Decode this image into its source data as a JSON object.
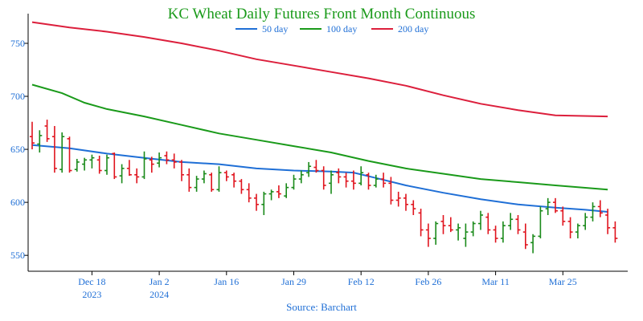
{
  "chart_data": {
    "type": "ohlc",
    "title": "KC Wheat Daily Futures Front Month Continuous",
    "source": "Source: Barchart",
    "title_color": "#1a9a1a",
    "ylim": [
      535,
      778
    ],
    "y_ticks": [
      {
        "value": 550,
        "label": "550"
      },
      {
        "value": 600,
        "label": "600"
      },
      {
        "value": 650,
        "label": "650"
      },
      {
        "value": 700,
        "label": "700"
      },
      {
        "value": 750,
        "label": "750"
      }
    ],
    "xlim": [
      0,
      79
    ],
    "x_ticks": [
      {
        "pos": 8,
        "label": "Dec 18",
        "sublabel": "2023"
      },
      {
        "pos": 17,
        "label": "Jan 2",
        "sublabel": "2024"
      },
      {
        "pos": 26,
        "label": "Jan 16",
        "sublabel": ""
      },
      {
        "pos": 35,
        "label": "Jan 29",
        "sublabel": ""
      },
      {
        "pos": 44,
        "label": "Feb 12",
        "sublabel": ""
      },
      {
        "pos": 53,
        "label": "Feb 26",
        "sublabel": ""
      },
      {
        "pos": 62,
        "label": "Mar 11",
        "sublabel": ""
      },
      {
        "pos": 71,
        "label": "Mar 25",
        "sublabel": ""
      }
    ],
    "legend": [
      {
        "name": "50 day",
        "color": "#1f6fd6"
      },
      {
        "name": "100 day",
        "color": "#1a9a1a"
      },
      {
        "name": "200 day",
        "color": "#dc1f3c"
      }
    ],
    "moving_averages": [
      {
        "name": "50 day",
        "color": "#1f6fd6",
        "points": [
          [
            0,
            654
          ],
          [
            5,
            651
          ],
          [
            10,
            646
          ],
          [
            15,
            642
          ],
          [
            20,
            638
          ],
          [
            25,
            636
          ],
          [
            30,
            632
          ],
          [
            35,
            630
          ],
          [
            40,
            629
          ],
          [
            43,
            628
          ],
          [
            46,
            623
          ],
          [
            50,
            616
          ],
          [
            55,
            609
          ],
          [
            60,
            603
          ],
          [
            65,
            598
          ],
          [
            70,
            595
          ],
          [
            74,
            593
          ],
          [
            77,
            591
          ]
        ]
      },
      {
        "name": "100 day",
        "color": "#1a9a1a",
        "points": [
          [
            0,
            711
          ],
          [
            4,
            703
          ],
          [
            7,
            694
          ],
          [
            10,
            688
          ],
          [
            15,
            681
          ],
          [
            20,
            673
          ],
          [
            25,
            665
          ],
          [
            30,
            659
          ],
          [
            35,
            653
          ],
          [
            40,
            647
          ],
          [
            45,
            639
          ],
          [
            50,
            632
          ],
          [
            55,
            627
          ],
          [
            60,
            622
          ],
          [
            65,
            619
          ],
          [
            70,
            616
          ],
          [
            77,
            612
          ]
        ]
      },
      {
        "name": "200 day",
        "color": "#dc1f3c",
        "points": [
          [
            0,
            770
          ],
          [
            5,
            765
          ],
          [
            10,
            761
          ],
          [
            15,
            756
          ],
          [
            20,
            750
          ],
          [
            25,
            743
          ],
          [
            30,
            735
          ],
          [
            35,
            729
          ],
          [
            40,
            723
          ],
          [
            45,
            717
          ],
          [
            50,
            710
          ],
          [
            55,
            701
          ],
          [
            60,
            693
          ],
          [
            65,
            687
          ],
          [
            70,
            682
          ],
          [
            77,
            681
          ]
        ]
      }
    ],
    "candles": [
      {
        "x": 0,
        "o": 662,
        "h": 676,
        "l": 650,
        "c": 656,
        "up": false
      },
      {
        "x": 1,
        "o": 655,
        "h": 668,
        "l": 647,
        "c": 663,
        "up": true
      },
      {
        "x": 2,
        "o": 672,
        "h": 678,
        "l": 657,
        "c": 660,
        "up": false
      },
      {
        "x": 3,
        "o": 662,
        "h": 672,
        "l": 628,
        "c": 632,
        "up": false
      },
      {
        "x": 4,
        "o": 631,
        "h": 666,
        "l": 628,
        "c": 662,
        "up": true
      },
      {
        "x": 5,
        "o": 660,
        "h": 662,
        "l": 628,
        "c": 630,
        "up": false
      },
      {
        "x": 6,
        "o": 631,
        "h": 641,
        "l": 629,
        "c": 638,
        "up": true
      },
      {
        "x": 7,
        "o": 636,
        "h": 642,
        "l": 630,
        "c": 640,
        "up": true
      },
      {
        "x": 8,
        "o": 640,
        "h": 645,
        "l": 632,
        "c": 642,
        "up": true
      },
      {
        "x": 9,
        "o": 640,
        "h": 644,
        "l": 627,
        "c": 630,
        "up": false
      },
      {
        "x": 10,
        "o": 630,
        "h": 645,
        "l": 626,
        "c": 642,
        "up": true
      },
      {
        "x": 11,
        "o": 646,
        "h": 647,
        "l": 622,
        "c": 624,
        "up": false
      },
      {
        "x": 12,
        "o": 625,
        "h": 636,
        "l": 618,
        "c": 632,
        "up": true
      },
      {
        "x": 13,
        "o": 632,
        "h": 640,
        "l": 625,
        "c": 626,
        "up": false
      },
      {
        "x": 14,
        "o": 626,
        "h": 632,
        "l": 618,
        "c": 624,
        "up": false
      },
      {
        "x": 15,
        "o": 624,
        "h": 648,
        "l": 622,
        "c": 641,
        "up": true
      },
      {
        "x": 16,
        "o": 640,
        "h": 643,
        "l": 628,
        "c": 636,
        "up": false
      },
      {
        "x": 17,
        "o": 637,
        "h": 647,
        "l": 633,
        "c": 642,
        "up": true
      },
      {
        "x": 18,
        "o": 644,
        "h": 648,
        "l": 636,
        "c": 640,
        "up": false
      },
      {
        "x": 19,
        "o": 640,
        "h": 646,
        "l": 632,
        "c": 638,
        "up": false
      },
      {
        "x": 20,
        "o": 638,
        "h": 640,
        "l": 620,
        "c": 626,
        "up": false
      },
      {
        "x": 21,
        "o": 626,
        "h": 632,
        "l": 610,
        "c": 614,
        "up": false
      },
      {
        "x": 22,
        "o": 614,
        "h": 625,
        "l": 610,
        "c": 622,
        "up": true
      },
      {
        "x": 23,
        "o": 622,
        "h": 630,
        "l": 618,
        "c": 627,
        "up": true
      },
      {
        "x": 24,
        "o": 626,
        "h": 628,
        "l": 610,
        "c": 612,
        "up": false
      },
      {
        "x": 25,
        "o": 612,
        "h": 634,
        "l": 610,
        "c": 628,
        "up": true
      },
      {
        "x": 26,
        "o": 628,
        "h": 630,
        "l": 620,
        "c": 624,
        "up": false
      },
      {
        "x": 27,
        "o": 626,
        "h": 628,
        "l": 614,
        "c": 620,
        "up": false
      },
      {
        "x": 28,
        "o": 620,
        "h": 622,
        "l": 608,
        "c": 612,
        "up": false
      },
      {
        "x": 29,
        "o": 612,
        "h": 618,
        "l": 600,
        "c": 604,
        "up": false
      },
      {
        "x": 30,
        "o": 604,
        "h": 608,
        "l": 592,
        "c": 598,
        "up": false
      },
      {
        "x": 31,
        "o": 598,
        "h": 610,
        "l": 588,
        "c": 608,
        "up": true
      },
      {
        "x": 32,
        "o": 608,
        "h": 612,
        "l": 602,
        "c": 610,
        "up": true
      },
      {
        "x": 33,
        "o": 610,
        "h": 616,
        "l": 604,
        "c": 608,
        "up": false
      },
      {
        "x": 34,
        "o": 606,
        "h": 618,
        "l": 604,
        "c": 614,
        "up": true
      },
      {
        "x": 35,
        "o": 614,
        "h": 626,
        "l": 612,
        "c": 622,
        "up": true
      },
      {
        "x": 36,
        "o": 622,
        "h": 630,
        "l": 618,
        "c": 626,
        "up": true
      },
      {
        "x": 37,
        "o": 628,
        "h": 638,
        "l": 624,
        "c": 634,
        "up": true
      },
      {
        "x": 38,
        "o": 633,
        "h": 640,
        "l": 628,
        "c": 630,
        "up": false
      },
      {
        "x": 39,
        "o": 630,
        "h": 634,
        "l": 612,
        "c": 616,
        "up": false
      },
      {
        "x": 40,
        "o": 618,
        "h": 630,
        "l": 608,
        "c": 626,
        "up": true
      },
      {
        "x": 41,
        "o": 628,
        "h": 632,
        "l": 618,
        "c": 624,
        "up": false
      },
      {
        "x": 42,
        "o": 624,
        "h": 628,
        "l": 614,
        "c": 620,
        "up": false
      },
      {
        "x": 43,
        "o": 620,
        "h": 630,
        "l": 612,
        "c": 618,
        "up": false
      },
      {
        "x": 44,
        "o": 618,
        "h": 634,
        "l": 616,
        "c": 628,
        "up": true
      },
      {
        "x": 45,
        "o": 626,
        "h": 628,
        "l": 612,
        "c": 616,
        "up": false
      },
      {
        "x": 46,
        "o": 616,
        "h": 626,
        "l": 614,
        "c": 622,
        "up": true
      },
      {
        "x": 47,
        "o": 622,
        "h": 628,
        "l": 614,
        "c": 618,
        "up": false
      },
      {
        "x": 48,
        "o": 618,
        "h": 624,
        "l": 598,
        "c": 602,
        "up": false
      },
      {
        "x": 49,
        "o": 602,
        "h": 610,
        "l": 596,
        "c": 604,
        "up": false
      },
      {
        "x": 50,
        "o": 604,
        "h": 608,
        "l": 592,
        "c": 598,
        "up": false
      },
      {
        "x": 51,
        "o": 598,
        "h": 602,
        "l": 588,
        "c": 594,
        "up": false
      },
      {
        "x": 52,
        "o": 590,
        "h": 594,
        "l": 568,
        "c": 574,
        "up": false
      },
      {
        "x": 53,
        "o": 574,
        "h": 580,
        "l": 558,
        "c": 566,
        "up": false
      },
      {
        "x": 54,
        "o": 566,
        "h": 582,
        "l": 560,
        "c": 580,
        "up": true
      },
      {
        "x": 55,
        "o": 582,
        "h": 588,
        "l": 570,
        "c": 578,
        "up": false
      },
      {
        "x": 56,
        "o": 578,
        "h": 586,
        "l": 572,
        "c": 574,
        "up": false
      },
      {
        "x": 57,
        "o": 574,
        "h": 580,
        "l": 564,
        "c": 576,
        "up": true
      },
      {
        "x": 58,
        "o": 566,
        "h": 580,
        "l": 558,
        "c": 572,
        "up": true
      },
      {
        "x": 59,
        "o": 572,
        "h": 582,
        "l": 568,
        "c": 580,
        "up": true
      },
      {
        "x": 60,
        "o": 580,
        "h": 592,
        "l": 574,
        "c": 588,
        "up": true
      },
      {
        "x": 61,
        "o": 586,
        "h": 590,
        "l": 570,
        "c": 574,
        "up": false
      },
      {
        "x": 62,
        "o": 574,
        "h": 578,
        "l": 562,
        "c": 566,
        "up": false
      },
      {
        "x": 63,
        "o": 566,
        "h": 582,
        "l": 562,
        "c": 578,
        "up": true
      },
      {
        "x": 64,
        "o": 578,
        "h": 590,
        "l": 574,
        "c": 584,
        "up": true
      },
      {
        "x": 65,
        "o": 584,
        "h": 588,
        "l": 570,
        "c": 574,
        "up": false
      },
      {
        "x": 66,
        "o": 572,
        "h": 580,
        "l": 556,
        "c": 560,
        "up": false
      },
      {
        "x": 67,
        "o": 562,
        "h": 570,
        "l": 552,
        "c": 568,
        "up": true
      },
      {
        "x": 68,
        "o": 568,
        "h": 596,
        "l": 566,
        "c": 592,
        "up": true
      },
      {
        "x": 69,
        "o": 594,
        "h": 604,
        "l": 588,
        "c": 600,
        "up": true
      },
      {
        "x": 70,
        "o": 600,
        "h": 604,
        "l": 590,
        "c": 592,
        "up": false
      },
      {
        "x": 71,
        "o": 592,
        "h": 596,
        "l": 578,
        "c": 582,
        "up": false
      },
      {
        "x": 72,
        "o": 582,
        "h": 586,
        "l": 566,
        "c": 572,
        "up": false
      },
      {
        "x": 73,
        "o": 572,
        "h": 580,
        "l": 566,
        "c": 578,
        "up": true
      },
      {
        "x": 74,
        "o": 578,
        "h": 590,
        "l": 574,
        "c": 586,
        "up": true
      },
      {
        "x": 75,
        "o": 586,
        "h": 600,
        "l": 582,
        "c": 596,
        "up": true
      },
      {
        "x": 76,
        "o": 596,
        "h": 602,
        "l": 586,
        "c": 590,
        "up": false
      },
      {
        "x": 77,
        "o": 588,
        "h": 594,
        "l": 570,
        "c": 576,
        "up": false
      },
      {
        "x": 78,
        "o": 576,
        "h": 582,
        "l": 562,
        "c": 566,
        "up": false
      }
    ]
  }
}
